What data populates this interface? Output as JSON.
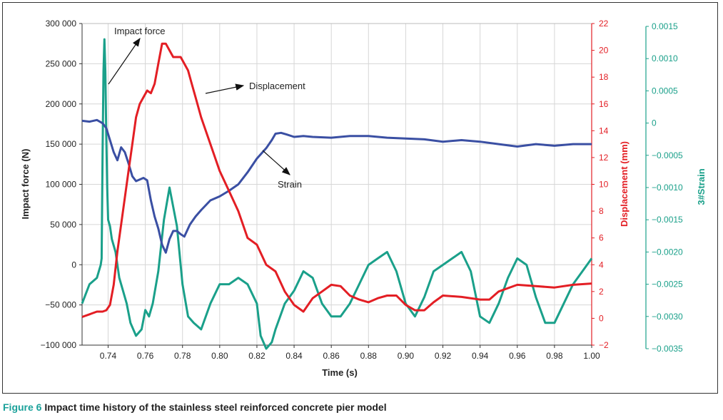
{
  "chart_data": {
    "type": "line",
    "title": "",
    "xlabel": "Time (s)",
    "xlim": [
      0.726,
      1.0
    ],
    "xticks": [
      "0.74",
      "0.76",
      "0.78",
      "0.80",
      "0.82",
      "0.84",
      "0.86",
      "0.88",
      "0.90",
      "0.92",
      "0.94",
      "0.96",
      "0.98",
      "1.00"
    ],
    "xtick_values": [
      0.74,
      0.76,
      0.78,
      0.8,
      0.82,
      0.84,
      0.86,
      0.88,
      0.9,
      0.92,
      0.94,
      0.96,
      0.98,
      1.0
    ],
    "axes": {
      "left": {
        "label": "Impact force (N)",
        "color": "#222222",
        "ylim": [
          -100000,
          300000
        ],
        "ticks": [
          "−100 000",
          "−50 000",
          "0",
          "50 000",
          "100 000",
          "150 000",
          "200 000",
          "250 000",
          "300 000"
        ],
        "tick_values": [
          -100000,
          -50000,
          0,
          50000,
          100000,
          150000,
          200000,
          250000,
          300000
        ]
      },
      "right1": {
        "label": "Displacement (mm)",
        "color": "#e31e24",
        "ylim": [
          -2,
          22
        ],
        "ticks": [
          "−2",
          "0",
          "2",
          "4",
          "6",
          "8",
          "10",
          "12",
          "14",
          "16",
          "18",
          "20",
          "22"
        ],
        "tick_values": [
          -2,
          0,
          2,
          4,
          6,
          8,
          10,
          12,
          14,
          16,
          18,
          20,
          22
        ]
      },
      "right2": {
        "label": "3#Strain",
        "color": "#1aa08a",
        "ylim": [
          -0.0035,
          0.0015
        ],
        "ticks": [
          "−0.0035",
          "−0.0030",
          "−0.0025",
          "−0.0020",
          "−0.0015",
          "−0.0010",
          "−0.0005",
          "0",
          "0.0005",
          "0.0010",
          "0.0015"
        ],
        "tick_values": [
          -0.0035,
          -0.003,
          -0.0025,
          -0.002,
          -0.0015,
          -0.001,
          -0.0005,
          0,
          0.0005,
          0.001,
          0.0015
        ]
      }
    },
    "series": [
      {
        "name": "Strain",
        "axis": "left",
        "color": "#3a4fa3",
        "x": [
          0.726,
          0.73,
          0.734,
          0.737,
          0.739,
          0.741,
          0.743,
          0.745,
          0.747,
          0.749,
          0.751,
          0.753,
          0.755,
          0.757,
          0.759,
          0.761,
          0.763,
          0.765,
          0.767,
          0.769,
          0.771,
          0.773,
          0.775,
          0.777,
          0.779,
          0.781,
          0.784,
          0.787,
          0.79,
          0.795,
          0.8,
          0.805,
          0.81,
          0.815,
          0.82,
          0.825,
          0.828,
          0.83,
          0.833,
          0.836,
          0.84,
          0.845,
          0.85,
          0.86,
          0.87,
          0.88,
          0.89,
          0.9,
          0.91,
          0.92,
          0.93,
          0.94,
          0.95,
          0.96,
          0.97,
          0.98,
          0.99,
          1.0
        ],
        "y": [
          179000,
          178000,
          180000,
          176000,
          170000,
          155000,
          140000,
          130000,
          146000,
          140000,
          126000,
          110000,
          104000,
          106000,
          108000,
          105000,
          80000,
          60000,
          45000,
          25000,
          15000,
          32000,
          42000,
          42000,
          38000,
          35000,
          50000,
          60000,
          68000,
          80000,
          85000,
          92000,
          100000,
          115000,
          132000,
          145000,
          155000,
          163000,
          164000,
          162000,
          159000,
          160000,
          159000,
          158000,
          160000,
          160000,
          158000,
          157000,
          156000,
          153000,
          155000,
          153000,
          150000,
          147000,
          150000,
          148000,
          150000,
          150000
        ]
      },
      {
        "name": "Displacement",
        "axis": "right1",
        "color": "#e31e24",
        "x": [
          0.726,
          0.73,
          0.734,
          0.737,
          0.739,
          0.741,
          0.743,
          0.745,
          0.747,
          0.749,
          0.751,
          0.753,
          0.755,
          0.757,
          0.759,
          0.761,
          0.763,
          0.765,
          0.767,
          0.769,
          0.771,
          0.773,
          0.775,
          0.777,
          0.779,
          0.781,
          0.783,
          0.785,
          0.787,
          0.79,
          0.795,
          0.8,
          0.805,
          0.81,
          0.815,
          0.82,
          0.825,
          0.83,
          0.835,
          0.84,
          0.845,
          0.85,
          0.855,
          0.86,
          0.865,
          0.87,
          0.875,
          0.88,
          0.885,
          0.89,
          0.895,
          0.9,
          0.905,
          0.91,
          0.915,
          0.92,
          0.93,
          0.94,
          0.945,
          0.95,
          0.96,
          0.97,
          0.98,
          0.99,
          1.0
        ],
        "y": [
          0.1,
          0.3,
          0.5,
          0.5,
          0.6,
          1.0,
          2.5,
          5.0,
          7.0,
          9.0,
          11.0,
          13.0,
          15.0,
          16.0,
          16.5,
          17.0,
          16.8,
          17.5,
          19.0,
          20.5,
          20.5,
          20.0,
          19.5,
          19.5,
          19.5,
          19.0,
          18.5,
          17.5,
          16.5,
          15.0,
          13.0,
          11.0,
          9.5,
          8.0,
          6.0,
          5.5,
          4.0,
          3.5,
          2.0,
          1.0,
          0.5,
          1.5,
          2.0,
          2.5,
          2.4,
          1.7,
          1.4,
          1.2,
          1.5,
          1.7,
          1.7,
          1.0,
          0.6,
          0.6,
          1.2,
          1.7,
          1.6,
          1.4,
          1.4,
          2.0,
          2.5,
          2.4,
          2.3,
          2.5,
          2.6
        ]
      },
      {
        "name": "3#Strain",
        "axis": "right2",
        "color": "#1aa08a",
        "x": [
          0.726,
          0.73,
          0.734,
          0.736,
          0.7365,
          0.737,
          0.7375,
          0.738,
          0.7385,
          0.739,
          0.7395,
          0.74,
          0.741,
          0.742,
          0.744,
          0.746,
          0.748,
          0.75,
          0.752,
          0.755,
          0.758,
          0.76,
          0.762,
          0.764,
          0.767,
          0.77,
          0.773,
          0.775,
          0.777,
          0.78,
          0.783,
          0.786,
          0.79,
          0.795,
          0.8,
          0.805,
          0.81,
          0.815,
          0.82,
          0.822,
          0.825,
          0.828,
          0.83,
          0.835,
          0.84,
          0.845,
          0.85,
          0.855,
          0.86,
          0.865,
          0.87,
          0.875,
          0.88,
          0.885,
          0.89,
          0.895,
          0.9,
          0.905,
          0.91,
          0.915,
          0.92,
          0.925,
          0.93,
          0.935,
          0.94,
          0.945,
          0.95,
          0.955,
          0.96,
          0.965,
          0.97,
          0.975,
          0.98,
          0.985,
          0.99,
          0.995,
          1.0
        ],
        "y": [
          -0.0028,
          -0.0025,
          -0.0024,
          -0.0022,
          -0.0021,
          -0.0005,
          0.0008,
          0.0013,
          0.0008,
          -0.0002,
          -0.001,
          -0.0015,
          -0.0016,
          -0.0018,
          -0.002,
          -0.0024,
          -0.0026,
          -0.0028,
          -0.0031,
          -0.0033,
          -0.0032,
          -0.0029,
          -0.003,
          -0.0028,
          -0.0023,
          -0.0015,
          -0.001,
          -0.0013,
          -0.0016,
          -0.0025,
          -0.003,
          -0.0031,
          -0.0032,
          -0.0028,
          -0.0025,
          -0.0025,
          -0.0024,
          -0.0025,
          -0.0028,
          -0.0033,
          -0.0035,
          -0.0034,
          -0.0032,
          -0.0028,
          -0.0026,
          -0.0023,
          -0.0024,
          -0.0028,
          -0.003,
          -0.003,
          -0.0028,
          -0.0025,
          -0.0022,
          -0.0021,
          -0.002,
          -0.0023,
          -0.0028,
          -0.003,
          -0.0027,
          -0.0023,
          -0.0022,
          -0.0021,
          -0.002,
          -0.0023,
          -0.003,
          -0.0031,
          -0.0028,
          -0.0024,
          -0.0021,
          -0.0022,
          -0.0027,
          -0.0031,
          -0.0031,
          -0.0028,
          -0.0025,
          -0.0023,
          -0.0021
        ]
      }
    ],
    "annotations": [
      {
        "text": "Impact force",
        "target": "3#Strain"
      },
      {
        "text": "Displacement",
        "target": "Displacement"
      },
      {
        "text": "Strain",
        "target": "Strain"
      }
    ]
  },
  "caption": {
    "label": "Figure 6",
    "text": " Impact time history of the stainless steel reinforced concrete pier model"
  }
}
